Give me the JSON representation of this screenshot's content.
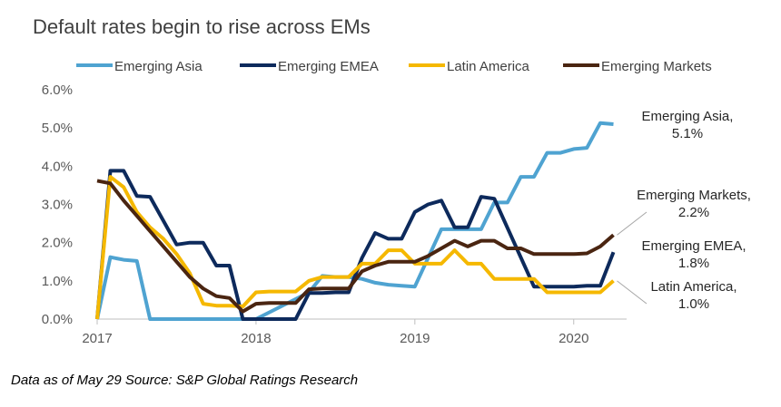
{
  "chart_data": {
    "type": "line",
    "title": "Default rates begin to rise across EMs",
    "xlabel": "",
    "ylabel": "",
    "ylim": [
      0,
      6
    ],
    "yticks": [
      "0.0%",
      "1.0%",
      "2.0%",
      "3.0%",
      "4.0%",
      "5.0%",
      "6.0%"
    ],
    "xticks": [
      "2017",
      "2018",
      "2019",
      "2020"
    ],
    "xtick_values": [
      2017.0,
      2018.0,
      2019.0,
      2020.0
    ],
    "xlim": [
      2017.0,
      2020.333
    ],
    "grid": false,
    "legend_position": "top",
    "series": [
      {
        "name": "Emerging Asia",
        "color": "#4fa3d1",
        "points": [
          [
            2017.0,
            0.0
          ],
          [
            2017.083,
            1.62
          ],
          [
            2017.167,
            1.55
          ],
          [
            2017.25,
            1.52
          ],
          [
            2017.333,
            0.0
          ],
          [
            2017.917,
            0.0
          ],
          [
            2018.0,
            0.0
          ],
          [
            2018.333,
            0.7
          ],
          [
            2018.417,
            1.13
          ],
          [
            2018.5,
            1.1
          ],
          [
            2018.583,
            1.1
          ],
          [
            2018.667,
            1.05
          ],
          [
            2018.75,
            0.95
          ],
          [
            2018.833,
            0.9
          ],
          [
            2018.917,
            0.87
          ],
          [
            2019.0,
            0.85
          ],
          [
            2019.083,
            1.6
          ],
          [
            2019.167,
            2.35
          ],
          [
            2019.25,
            2.35
          ],
          [
            2019.333,
            2.35
          ],
          [
            2019.417,
            2.35
          ],
          [
            2019.5,
            3.05
          ],
          [
            2019.583,
            3.05
          ],
          [
            2019.667,
            3.72
          ],
          [
            2019.75,
            3.72
          ],
          [
            2019.833,
            4.35
          ],
          [
            2019.917,
            4.35
          ],
          [
            2020.0,
            4.45
          ],
          [
            2020.083,
            4.48
          ],
          [
            2020.167,
            5.13
          ],
          [
            2020.25,
            5.1
          ]
        ]
      },
      {
        "name": "Emerging EMEA",
        "color": "#0d2a5c",
        "points": [
          [
            2017.0,
            0.0
          ],
          [
            2017.083,
            3.88
          ],
          [
            2017.167,
            3.88
          ],
          [
            2017.25,
            3.22
          ],
          [
            2017.333,
            3.2
          ],
          [
            2017.5,
            1.95
          ],
          [
            2017.583,
            2.0
          ],
          [
            2017.667,
            2.0
          ],
          [
            2017.75,
            1.4
          ],
          [
            2017.833,
            1.4
          ],
          [
            2017.917,
            0.0
          ],
          [
            2018.25,
            0.0
          ],
          [
            2018.333,
            0.68
          ],
          [
            2018.417,
            0.68
          ],
          [
            2018.5,
            0.7
          ],
          [
            2018.583,
            0.7
          ],
          [
            2018.667,
            1.6
          ],
          [
            2018.75,
            2.25
          ],
          [
            2018.833,
            2.1
          ],
          [
            2018.917,
            2.1
          ],
          [
            2019.0,
            2.8
          ],
          [
            2019.083,
            3.0
          ],
          [
            2019.167,
            3.1
          ],
          [
            2019.25,
            2.4
          ],
          [
            2019.333,
            2.4
          ],
          [
            2019.417,
            3.2
          ],
          [
            2019.5,
            3.15
          ],
          [
            2019.75,
            0.85
          ],
          [
            2019.917,
            0.85
          ],
          [
            2020.0,
            0.85
          ],
          [
            2020.083,
            0.87
          ],
          [
            2020.167,
            0.87
          ],
          [
            2020.25,
            1.75
          ]
        ]
      },
      {
        "name": "Latin America",
        "color": "#f5b800",
        "points": [
          [
            2017.0,
            0.0
          ],
          [
            2017.083,
            3.72
          ],
          [
            2017.167,
            3.45
          ],
          [
            2017.25,
            2.8
          ],
          [
            2017.333,
            2.4
          ],
          [
            2017.417,
            2.1
          ],
          [
            2017.5,
            1.7
          ],
          [
            2017.583,
            1.2
          ],
          [
            2017.667,
            0.4
          ],
          [
            2017.75,
            0.35
          ],
          [
            2017.833,
            0.35
          ],
          [
            2017.917,
            0.33
          ],
          [
            2018.0,
            0.7
          ],
          [
            2018.083,
            0.72
          ],
          [
            2018.167,
            0.72
          ],
          [
            2018.25,
            0.72
          ],
          [
            2018.333,
            1.0
          ],
          [
            2018.417,
            1.1
          ],
          [
            2018.5,
            1.1
          ],
          [
            2018.583,
            1.1
          ],
          [
            2018.667,
            1.45
          ],
          [
            2018.75,
            1.45
          ],
          [
            2018.833,
            1.8
          ],
          [
            2018.917,
            1.8
          ],
          [
            2019.0,
            1.45
          ],
          [
            2019.083,
            1.45
          ],
          [
            2019.167,
            1.45
          ],
          [
            2019.25,
            1.8
          ],
          [
            2019.333,
            1.45
          ],
          [
            2019.417,
            1.45
          ],
          [
            2019.5,
            1.05
          ],
          [
            2019.583,
            1.05
          ],
          [
            2019.667,
            1.05
          ],
          [
            2019.75,
            1.05
          ],
          [
            2019.833,
            0.7
          ],
          [
            2019.917,
            0.7
          ],
          [
            2020.0,
            0.7
          ],
          [
            2020.083,
            0.7
          ],
          [
            2020.167,
            0.7
          ],
          [
            2020.25,
            1.0
          ]
        ]
      },
      {
        "name": "Emerging Markets",
        "color": "#4a2511",
        "points": [
          [
            2017.0,
            3.62
          ],
          [
            2017.083,
            3.55
          ],
          [
            2017.167,
            3.1
          ],
          [
            2017.25,
            2.7
          ],
          [
            2017.333,
            2.3
          ],
          [
            2017.417,
            1.9
          ],
          [
            2017.5,
            1.5
          ],
          [
            2017.583,
            1.1
          ],
          [
            2017.667,
            0.8
          ],
          [
            2017.75,
            0.6
          ],
          [
            2017.833,
            0.55
          ],
          [
            2017.917,
            0.2
          ],
          [
            2018.0,
            0.4
          ],
          [
            2018.083,
            0.42
          ],
          [
            2018.167,
            0.42
          ],
          [
            2018.25,
            0.42
          ],
          [
            2018.333,
            0.78
          ],
          [
            2018.417,
            0.8
          ],
          [
            2018.5,
            0.8
          ],
          [
            2018.583,
            0.8
          ],
          [
            2018.667,
            1.25
          ],
          [
            2018.75,
            1.4
          ],
          [
            2018.833,
            1.5
          ],
          [
            2018.917,
            1.5
          ],
          [
            2019.0,
            1.5
          ],
          [
            2019.083,
            1.65
          ],
          [
            2019.167,
            1.85
          ],
          [
            2019.25,
            2.05
          ],
          [
            2019.333,
            1.9
          ],
          [
            2019.417,
            2.05
          ],
          [
            2019.5,
            2.05
          ],
          [
            2019.583,
            1.85
          ],
          [
            2019.667,
            1.85
          ],
          [
            2019.75,
            1.7
          ],
          [
            2019.833,
            1.7
          ],
          [
            2019.917,
            1.7
          ],
          [
            2020.0,
            1.7
          ],
          [
            2020.083,
            1.72
          ],
          [
            2020.167,
            1.9
          ],
          [
            2020.25,
            2.2
          ]
        ]
      }
    ],
    "annotations": [
      {
        "name": "emerging-asia",
        "lines": [
          "Emerging Asia,",
          "5.1%"
        ],
        "target": [
          2020.25,
          5.1
        ],
        "leader": false
      },
      {
        "name": "emerging-markets",
        "lines": [
          "Emerging Markets,",
          "2.2%"
        ],
        "target": [
          2020.25,
          2.2
        ],
        "leader": true
      },
      {
        "name": "emerging-emea",
        "lines": [
          "Emerging EMEA,",
          "1.8%"
        ],
        "target": [
          2020.25,
          1.75
        ],
        "leader": false
      },
      {
        "name": "latin-america",
        "lines": [
          "Latin America,",
          "1.0%"
        ],
        "target": [
          2020.25,
          1.0
        ],
        "leader": true
      }
    ]
  },
  "source_note": "Data as of May 29 Source: S&P Global Ratings Research"
}
